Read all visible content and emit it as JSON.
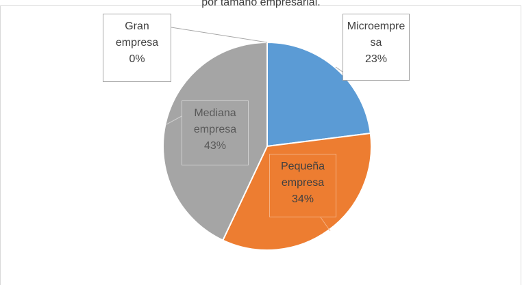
{
  "chart_data": {
    "type": "pie",
    "title": "por tamaño empresarial.",
    "categories": [
      "Microempresa",
      "Pequeña empresa",
      "Mediana empresa",
      "Gran empresa"
    ],
    "values": [
      23,
      34,
      43,
      0
    ],
    "value_labels": [
      "23%",
      "34%",
      "43%",
      "0%"
    ],
    "colors": [
      "#5b9bd5",
      "#ed7d31",
      "#a5a5a5",
      "#ffc000"
    ]
  }
}
